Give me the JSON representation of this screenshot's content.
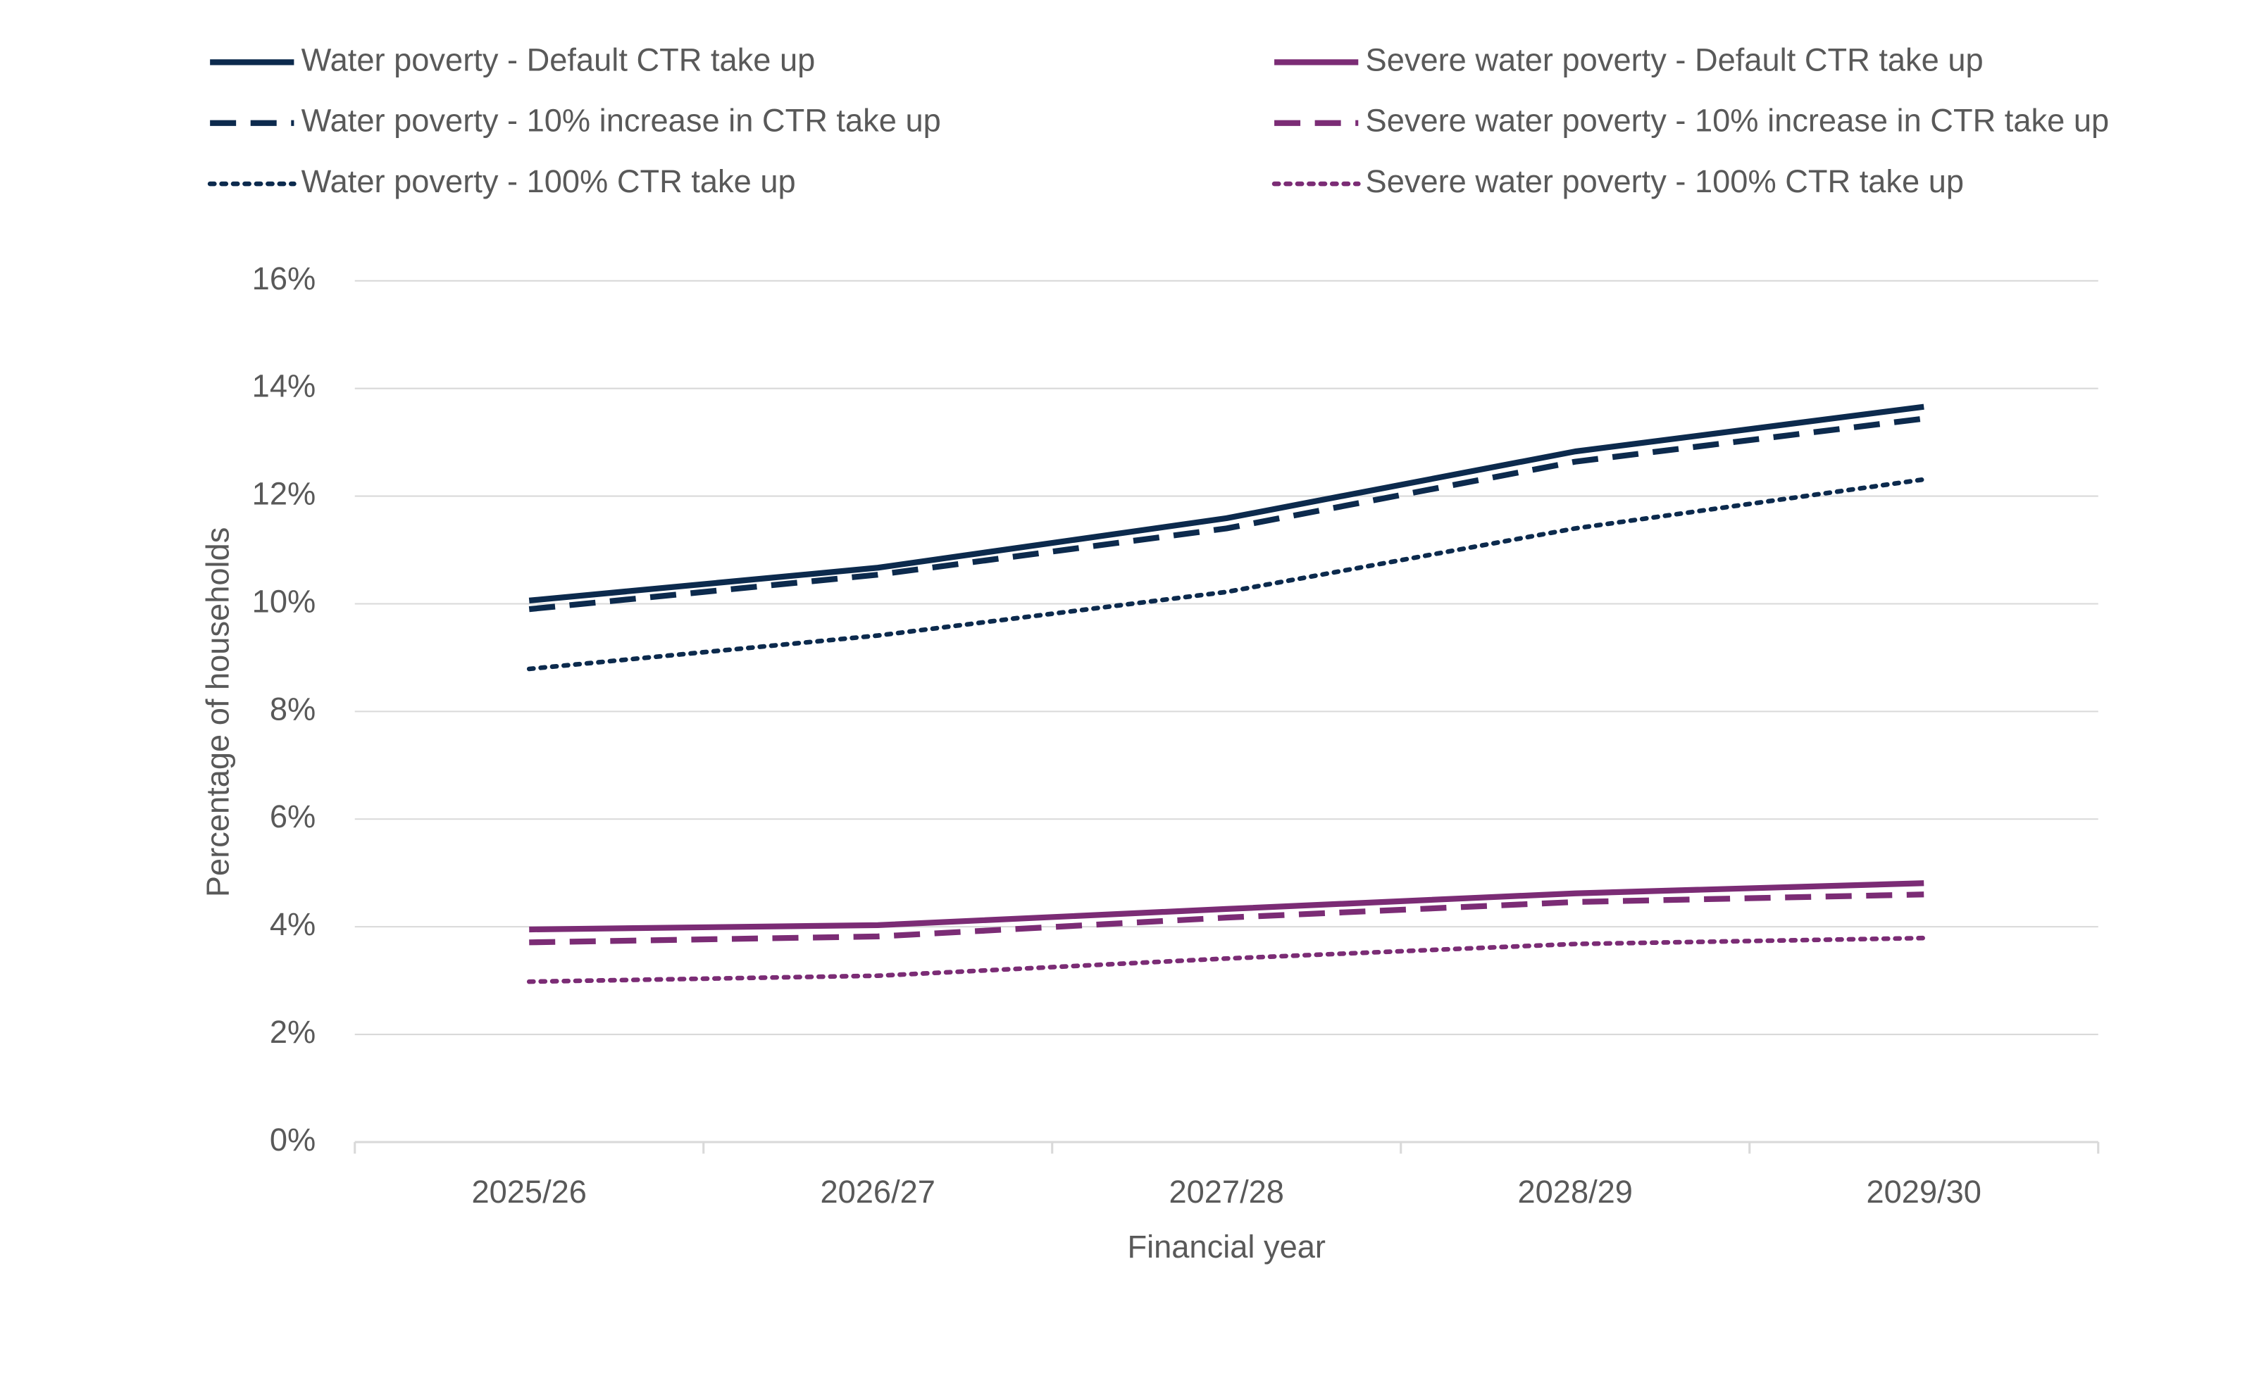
{
  "chart_data": {
    "type": "line",
    "x_label": "Financial year",
    "y_label": "Percentage of households",
    "categories": [
      "2025/26",
      "2026/27",
      "2027/28",
      "2028/29",
      "2029/30"
    ],
    "series": [
      {
        "name": "Water poverty - Default CTR take up",
        "color": "#0c2a4d",
        "dash": "solid",
        "values": [
          10.06,
          10.67,
          11.59,
          12.83,
          13.66
        ]
      },
      {
        "name": "Water poverty - 10% increase in CTR take up",
        "color": "#0c2a4d",
        "dash": "dashed",
        "values": [
          9.9,
          10.54,
          11.4,
          12.64,
          13.44
        ]
      },
      {
        "name": "Water poverty - 100% CTR take up",
        "color": "#0c2a4d",
        "dash": "dotted",
        "values": [
          8.79,
          9.41,
          10.22,
          11.4,
          12.31
        ]
      },
      {
        "name": "Severe water poverty - Default CTR take up",
        "color": "#7b2c75",
        "dash": "solid",
        "values": [
          3.95,
          4.03,
          4.33,
          4.62,
          4.81
        ]
      },
      {
        "name": "Severe water poverty - 10% increase in CTR take up",
        "color": "#7b2c75",
        "dash": "dashed",
        "values": [
          3.71,
          3.82,
          4.17,
          4.46,
          4.6
        ]
      },
      {
        "name": "Severe water poverty - 100% CTR take up",
        "color": "#7b2c75",
        "dash": "dotted",
        "values": [
          2.98,
          3.09,
          3.41,
          3.68,
          3.79
        ]
      }
    ],
    "ylim": [
      0,
      16
    ],
    "yticks": [
      {
        "value": 0,
        "label": "0%"
      },
      {
        "value": 2,
        "label": "2%"
      },
      {
        "value": 4,
        "label": "4%"
      },
      {
        "value": 6,
        "label": "6%"
      },
      {
        "value": 8,
        "label": "8%"
      },
      {
        "value": 10,
        "label": "10%"
      },
      {
        "value": 12,
        "label": "12%"
      },
      {
        "value": 14,
        "label": "14%"
      },
      {
        "value": 16,
        "label": "16%"
      }
    ],
    "grid": true,
    "legend": "top"
  }
}
